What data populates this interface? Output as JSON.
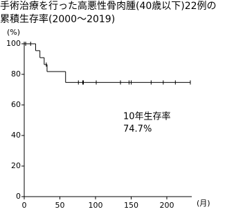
{
  "chart_data": {
    "type": "survival",
    "title": [
      "手術治療を行った高悪性骨肉腫(40歳以下)22例の",
      "累積生存率(2000～2019)"
    ],
    "y_label": "(%)",
    "x_label": "(月)",
    "annotation": [
      "10年生存率",
      "74.7%"
    ],
    "x": [
      0,
      16,
      22,
      28,
      32,
      58
    ],
    "values": [
      100,
      95.5,
      90.9,
      86.4,
      81.8,
      74.7
    ],
    "censored": {
      "x": [
        2,
        9,
        31,
        76,
        82,
        83,
        101,
        135,
        147,
        150,
        178,
        195,
        212,
        233
      ],
      "values": [
        100,
        100,
        86.4,
        74.7,
        74.7,
        74.7,
        74.7,
        74.7,
        74.7,
        74.7,
        74.7,
        74.7,
        74.7,
        74.7
      ]
    },
    "color": "#000000",
    "xlim": [
      0,
      235
    ],
    "ylim": [
      0,
      100
    ],
    "xticks": [
      0,
      50,
      100,
      150,
      200
    ],
    "yticks": [
      0,
      20,
      40,
      60,
      80,
      100
    ]
  }
}
